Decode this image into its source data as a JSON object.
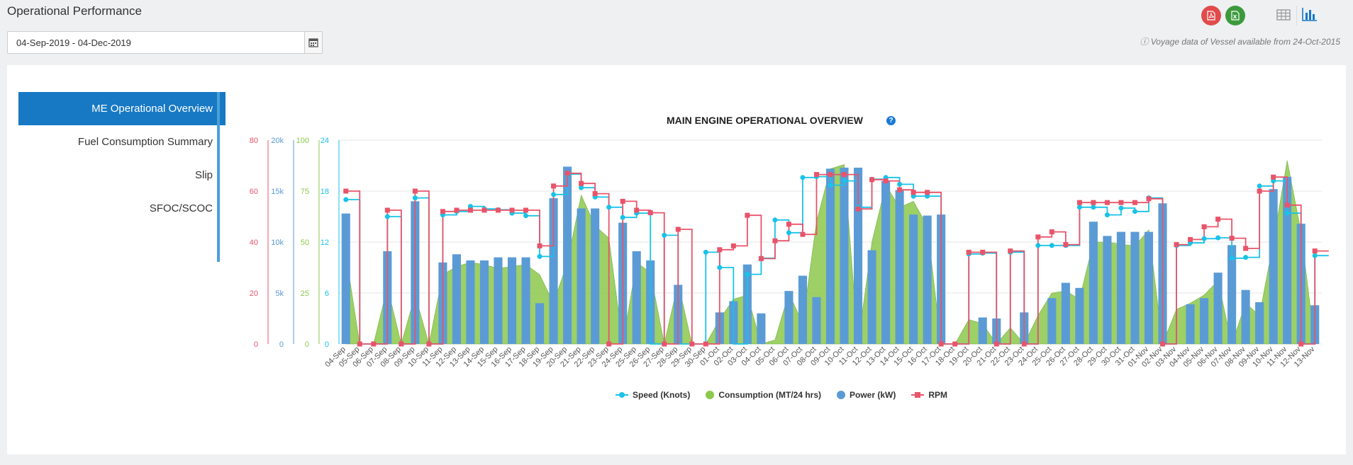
{
  "header": {
    "title": "Operational Performance",
    "date_range": "04-Sep-2019 - 04-Dec-2019",
    "voyage_note": "Voyage data of Vessel available from 24-Oct-2015"
  },
  "nav": {
    "items": [
      {
        "label": "ME Operational Overview",
        "active": true
      },
      {
        "label": "Fuel Consumption Summary",
        "active": false
      },
      {
        "label": "Slip",
        "active": false
      },
      {
        "label": "SFOC/SCOC",
        "active": false
      }
    ]
  },
  "colors": {
    "speed": "#19c2e8",
    "consumption": "#8cc84b",
    "power": "#5b9bd5",
    "rpm": "#e8546a",
    "nav_active": "#1779c4"
  },
  "chart_data": {
    "type": "line",
    "title": "MAIN ENGINE OPERATIONAL OVERVIEW",
    "categories": [
      "04-Sep",
      "05-Sep",
      "06-Sep",
      "07-Sep",
      "08-Sep",
      "09-Sep",
      "10-Sep",
      "11-Sep",
      "12-Sep",
      "13-Sep",
      "14-Sep",
      "15-Sep",
      "16-Sep",
      "17-Sep",
      "18-Sep",
      "19-Sep",
      "20-Sep",
      "21-Sep",
      "22-Sep",
      "23-Sep",
      "24-Sep",
      "25-Sep",
      "26-Sep",
      "27-Sep",
      "28-Sep",
      "29-Sep",
      "30-Sep",
      "01-Oct",
      "02-Oct",
      "03-Oct",
      "04-Oct",
      "05-Oct",
      "06-Oct",
      "07-Oct",
      "08-Oct",
      "09-Oct",
      "10-Oct",
      "11-Oct",
      "12-Oct",
      "13-Oct",
      "14-Oct",
      "15-Oct",
      "16-Oct",
      "17-Oct",
      "18-Oct",
      "19-Oct",
      "20-Oct",
      "21-Oct",
      "22-Oct",
      "23-Oct",
      "24-Oct",
      "25-Oct",
      "26-Oct",
      "27-Oct",
      "28-Oct",
      "29-Oct",
      "30-Oct",
      "31-Oct",
      "01-Nov",
      "02-Nov",
      "03-Nov",
      "04-Nov",
      "05-Nov",
      "06-Nov",
      "07-Nov",
      "08-Nov",
      "09-Nov",
      "10-Nov",
      "11-Nov",
      "12-Nov",
      "13-Nov"
    ],
    "axes": [
      {
        "name": "RPM",
        "ticks": [
          "80",
          "60",
          "40",
          "20",
          "0"
        ],
        "color": "#e8546a",
        "min": 0,
        "max": 80
      },
      {
        "name": "Power",
        "ticks": [
          "20k",
          "15k",
          "10k",
          "5k",
          "0"
        ],
        "color": "#5b9bd5",
        "min": 0,
        "max": 20000
      },
      {
        "name": "Consumption",
        "ticks": [
          "100",
          "75",
          "50",
          "25",
          "0"
        ],
        "color": "#8cc84b",
        "min": 0,
        "max": 100
      },
      {
        "name": "Speed",
        "ticks": [
          "24",
          "18",
          "12",
          "6",
          "0"
        ],
        "color": "#19c2e8",
        "min": 0,
        "max": 24
      }
    ],
    "series": [
      {
        "name": "Speed (Knots)",
        "type": "step-line",
        "axis": 3,
        "values": [
          17,
          0,
          0,
          15,
          0,
          17.2,
          0,
          15.2,
          15.6,
          16.2,
          15.9,
          15.8,
          15.4,
          15.1,
          10.3,
          17.6,
          20,
          18.4,
          17.3,
          16.1,
          14.9,
          15.4,
          0,
          12.8,
          0,
          0,
          10.8,
          9,
          0,
          8.2,
          10.1,
          14.6,
          13.1,
          19.6,
          19.7,
          18.7,
          19.2,
          16.1,
          19.4,
          19.6,
          18.8,
          17.4,
          17.4,
          0,
          0,
          10.6,
          10.7,
          0,
          10.8,
          0,
          11.6,
          11.6,
          11.6,
          16.1,
          16.1,
          15.2,
          16.0,
          15.6,
          17.2,
          0,
          11.6,
          11.9,
          12.4,
          12.5,
          10.1,
          10.2,
          18.6,
          19.2,
          15.4,
          0,
          10.4
        ]
      },
      {
        "name": "Consumption (MT/24 hrs)",
        "type": "area",
        "axis": 2,
        "values": [
          44,
          0,
          0,
          28,
          0,
          24,
          0,
          34,
          38,
          40,
          39,
          37,
          38,
          39,
          34,
          20,
          40,
          73,
          58,
          52,
          0,
          40,
          35,
          0,
          30,
          0,
          0,
          12,
          22,
          24,
          0,
          2,
          25,
          10,
          60,
          86,
          88,
          0,
          50,
          78,
          67,
          70,
          58,
          0,
          0,
          12,
          10,
          0,
          8,
          0,
          14,
          25,
          26,
          22,
          50,
          50,
          49,
          48,
          56,
          0,
          17,
          20,
          24,
          31,
          0,
          20,
          14,
          50,
          90,
          55,
          0
        ]
      },
      {
        "name": "Power (kW)",
        "type": "bar",
        "axis": 1,
        "values": [
          12800,
          0,
          0,
          9100,
          0,
          14000,
          0,
          8000,
          8800,
          8200,
          8200,
          8500,
          8500,
          8500,
          4000,
          14300,
          17400,
          13300,
          13300,
          0,
          11900,
          9100,
          8200,
          0,
          5800,
          0,
          0,
          3100,
          4200,
          7800,
          3000,
          0,
          5200,
          6700,
          4600,
          17200,
          17300,
          17300,
          9200,
          16000,
          15100,
          12700,
          12600,
          12700,
          0,
          0,
          2600,
          2500,
          0,
          3100,
          0,
          4500,
          6000,
          5500,
          12000,
          10600,
          11000,
          11000,
          11000,
          13800,
          0,
          3900,
          4500,
          7000,
          9700,
          5300,
          4100,
          15200,
          16400,
          11800,
          3800
        ]
      },
      {
        "name": "RPM",
        "type": "step-line",
        "axis": 0,
        "values": [
          60,
          0,
          0,
          52.5,
          0,
          60,
          0,
          52,
          52.5,
          52.5,
          52.5,
          52.5,
          52.5,
          52.5,
          38.5,
          62,
          67,
          63,
          59,
          0,
          56,
          52.5,
          51.5,
          0,
          45,
          0,
          0,
          37,
          38.5,
          50.5,
          33.5,
          40.5,
          47,
          43,
          66.5,
          66.5,
          66.5,
          53,
          64.5,
          64,
          60.5,
          59.5,
          59.5,
          0,
          0,
          36,
          36,
          0,
          36.5,
          0,
          42,
          44,
          39,
          55.5,
          55.5,
          55.5,
          55.5,
          55.5,
          57,
          0,
          39,
          41,
          46,
          49,
          41.5,
          37.5,
          60,
          65.5,
          54.5,
          0,
          36.5
        ]
      }
    ]
  }
}
